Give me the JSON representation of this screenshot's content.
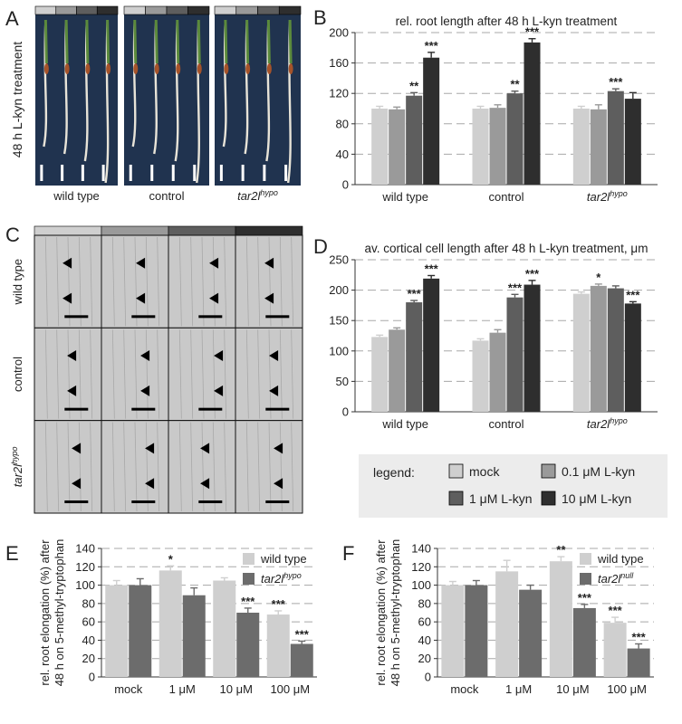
{
  "colors": {
    "mock": "#cfcfcf",
    "lkyn01": "#9a9a9a",
    "lkyn1": "#5e5e5e",
    "lkyn10": "#2e2e2e",
    "wt_bar": "#cfcfcf",
    "mut_bar": "#6c6c6c",
    "photo_bg": "#20334f",
    "micro_bg": "#c9c9c9"
  },
  "panel_a": {
    "letter": "A",
    "ylabel": "48 h L-kyn treatment",
    "groups": [
      {
        "label": "wild type",
        "italic": false,
        "sup": ""
      },
      {
        "label": "control",
        "italic": false,
        "sup": ""
      },
      {
        "label": "tar2l",
        "italic": true,
        "sup": "hypo"
      }
    ]
  },
  "panel_c": {
    "letter": "C",
    "rows": [
      {
        "label": "wild type",
        "sup": ""
      },
      {
        "label": "control",
        "sup": ""
      },
      {
        "label": "tar2l",
        "sup": "hypo"
      }
    ]
  },
  "legend": {
    "title": "legend:",
    "items": [
      {
        "label": "mock",
        "color": "#cfcfcf"
      },
      {
        "label": "0.1 μM L-kyn",
        "color": "#9a9a9a"
      },
      {
        "label": "1 μM L-kyn",
        "color": "#5e5e5e"
      },
      {
        "label": "10 μM L-kyn",
        "color": "#2e2e2e"
      }
    ]
  },
  "chart_data": [
    {
      "id": "B",
      "letter": "B",
      "type": "bar",
      "title": "rel. root length after 48 h L-kyn treatment",
      "categories": [
        "wild type",
        "control",
        "tar2l"
      ],
      "category_sup": [
        "",
        "",
        "hypo"
      ],
      "category_italic": [
        false,
        false,
        true
      ],
      "ylim": [
        0,
        200
      ],
      "yticks": [
        0,
        40,
        80,
        120,
        160,
        200
      ],
      "grid": true,
      "series": [
        {
          "color_key": "mock",
          "values": [
            100,
            100,
            100
          ],
          "errors": [
            3,
            3,
            3
          ],
          "sig": [
            "",
            "",
            ""
          ]
        },
        {
          "color_key": "lkyn01",
          "values": [
            99,
            101,
            99
          ],
          "errors": [
            3,
            4,
            6
          ],
          "sig": [
            "",
            "",
            ""
          ]
        },
        {
          "color_key": "lkyn1",
          "values": [
            117,
            120,
            123
          ],
          "errors": [
            4,
            3,
            3
          ],
          "sig": [
            "**",
            "**",
            "***"
          ]
        },
        {
          "color_key": "lkyn10",
          "values": [
            167,
            187,
            113
          ],
          "errors": [
            7,
            5,
            8
          ],
          "sig": [
            "***",
            "***",
            ""
          ]
        }
      ]
    },
    {
      "id": "D",
      "letter": "D",
      "type": "bar",
      "title": "av. cortical cell length after 48 h L-kyn treatment, μm",
      "categories": [
        "wild type",
        "control",
        "tar2l"
      ],
      "category_sup": [
        "",
        "",
        "hypo"
      ],
      "category_italic": [
        false,
        false,
        true
      ],
      "ylim": [
        0,
        250
      ],
      "yticks": [
        0,
        50,
        100,
        150,
        200,
        250
      ],
      "grid": true,
      "series": [
        {
          "color_key": "mock",
          "values": [
            123,
            117,
            194
          ],
          "errors": [
            3,
            3,
            3
          ],
          "sig": [
            "",
            "",
            ""
          ]
        },
        {
          "color_key": "lkyn01",
          "values": [
            135,
            130,
            207
          ],
          "errors": [
            3,
            5,
            3
          ],
          "sig": [
            "",
            "",
            "*"
          ]
        },
        {
          "color_key": "lkyn1",
          "values": [
            180,
            188,
            203
          ],
          "errors": [
            3,
            5,
            4
          ],
          "sig": [
            "***",
            "***",
            ""
          ]
        },
        {
          "color_key": "lkyn10",
          "values": [
            219,
            209,
            178
          ],
          "errors": [
            5,
            7,
            3
          ],
          "sig": [
            "***",
            "***",
            "***"
          ]
        }
      ]
    },
    {
      "id": "E",
      "letter": "E",
      "type": "bar",
      "ylabel_lines": [
        "rel. root elongation (%) after",
        "48 h on 5-methyl-tryptophan"
      ],
      "categories": [
        "mock",
        "1 μM",
        "10 μM",
        "100 μM"
      ],
      "ylim": [
        0,
        140
      ],
      "yticks": [
        0,
        20,
        40,
        60,
        80,
        100,
        120,
        140
      ],
      "grid": true,
      "legend_pos": "top-right",
      "series": [
        {
          "name": "wild type",
          "name_sup": "",
          "name_italic": false,
          "color_key": "wt_bar",
          "values": [
            100,
            116,
            105,
            68
          ],
          "errors": [
            5,
            5,
            3,
            4
          ],
          "sig": [
            "",
            "*",
            "",
            "***"
          ]
        },
        {
          "name": "tar2l",
          "name_sup": "hypo",
          "name_italic": true,
          "color_key": "mut_bar",
          "values": [
            100,
            89,
            70,
            36
          ],
          "errors": [
            7,
            8,
            5,
            3
          ],
          "sig": [
            "",
            "",
            "***",
            "***"
          ]
        }
      ]
    },
    {
      "id": "F",
      "letter": "F",
      "type": "bar",
      "ylabel_lines": [
        "rel. root elongation (%) after",
        "48 h on 5-methyl-tryptophan"
      ],
      "categories": [
        "mock",
        "1 μM",
        "10 μM",
        "100 μM"
      ],
      "ylim": [
        0,
        140
      ],
      "yticks": [
        0,
        20,
        40,
        60,
        80,
        100,
        120,
        140
      ],
      "grid": true,
      "legend_pos": "top-right",
      "series": [
        {
          "name": "wild type",
          "name_sup": "",
          "name_italic": false,
          "color_key": "wt_bar",
          "values": [
            100,
            115,
            126,
            59
          ],
          "errors": [
            4,
            12,
            5,
            6
          ],
          "sig": [
            "",
            "",
            "**",
            "***"
          ]
        },
        {
          "name": "tar2l",
          "name_sup": "null",
          "name_italic": true,
          "color_key": "mut_bar",
          "values": [
            100,
            95,
            75,
            31
          ],
          "errors": [
            5,
            5,
            4,
            5
          ],
          "sig": [
            "",
            "",
            "***",
            "***"
          ]
        }
      ]
    }
  ]
}
